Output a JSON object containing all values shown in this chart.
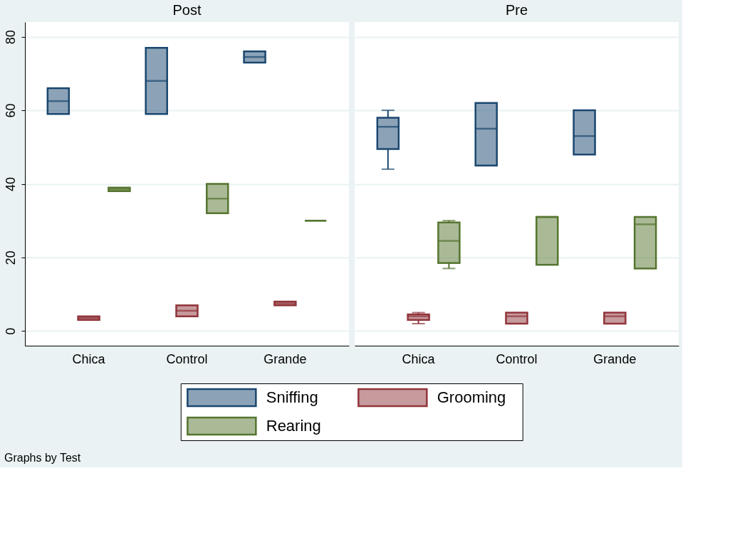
{
  "chart_data": [
    {
      "type": "box",
      "title": "Post",
      "categories": [
        "Chica",
        "Control",
        "Grande"
      ],
      "ylim": [
        -4,
        84
      ],
      "yticks": [
        0,
        20,
        40,
        60,
        80
      ],
      "grid": "y",
      "legend": "bottom",
      "annotations": [
        "Graphs by Test"
      ],
      "series": [
        {
          "name": "Sniffing",
          "color": "#1a476f",
          "boxes": [
            {
              "low": 59,
              "q1": 59,
              "median": 62.5,
              "q3": 66,
              "high": 66
            },
            {
              "low": 59,
              "q1": 59,
              "median": 68,
              "q3": 77,
              "high": 77
            },
            {
              "low": 73,
              "q1": 73,
              "median": 74.5,
              "q3": 76,
              "high": 76
            }
          ]
        },
        {
          "name": "Grooming",
          "color": "#90353b",
          "boxes": [
            {
              "low": 3,
              "q1": 3,
              "median": 3.5,
              "q3": 4,
              "high": 4
            },
            {
              "low": 4,
              "q1": 4,
              "median": 5.5,
              "q3": 7,
              "high": 7
            },
            {
              "low": 7,
              "q1": 7,
              "median": 7.5,
              "q3": 8,
              "high": 8
            }
          ]
        },
        {
          "name": "Rearing",
          "color": "#55752f",
          "boxes": [
            {
              "low": 38,
              "q1": 38,
              "median": 38.5,
              "q3": 39,
              "high": 39
            },
            {
              "low": 32,
              "q1": 32,
              "median": 36,
              "q3": 40,
              "high": 40
            },
            {
              "low": 30,
              "q1": 30,
              "median": 30,
              "q3": 30,
              "high": 30
            }
          ]
        }
      ]
    },
    {
      "type": "box",
      "title": "Pre",
      "categories": [
        "Chica",
        "Control",
        "Grande"
      ],
      "ylim": [
        -4,
        84
      ],
      "yticks": [
        0,
        20,
        40,
        60,
        80
      ],
      "grid": "y",
      "tick_labels": "x",
      "series": [
        {
          "name": "Sniffing",
          "color": "#1a476f",
          "boxes": [
            {
              "low": 44,
              "q1": 49.5,
              "median": 55.5,
              "q3": 58,
              "high": 60
            },
            {
              "low": 45,
              "q1": 45,
              "median": 55,
              "q3": 62,
              "high": 62
            },
            {
              "low": 48,
              "q1": 48,
              "median": 53,
              "q3": 60,
              "high": 60
            }
          ]
        },
        {
          "name": "Grooming",
          "color": "#90353b",
          "boxes": [
            {
              "low": 2,
              "q1": 3,
              "median": 4,
              "q3": 4.5,
              "high": 5
            },
            {
              "low": 2,
              "q1": 2,
              "median": 4,
              "q3": 5,
              "high": 5
            },
            {
              "low": 2,
              "q1": 2,
              "median": 4,
              "q3": 5,
              "high": 5
            }
          ]
        },
        {
          "name": "Rearing",
          "color": "#55752f",
          "boxes": [
            {
              "low": 17,
              "q1": 18.5,
              "median": 24.5,
              "q3": 29.5,
              "high": 30
            },
            {
              "low": 18,
              "q1": 18,
              "median": 31,
              "q3": 31,
              "high": 31
            },
            {
              "low": 17,
              "q1": 17,
              "median": 29,
              "q3": 31,
              "high": 31
            }
          ]
        }
      ]
    }
  ]
}
